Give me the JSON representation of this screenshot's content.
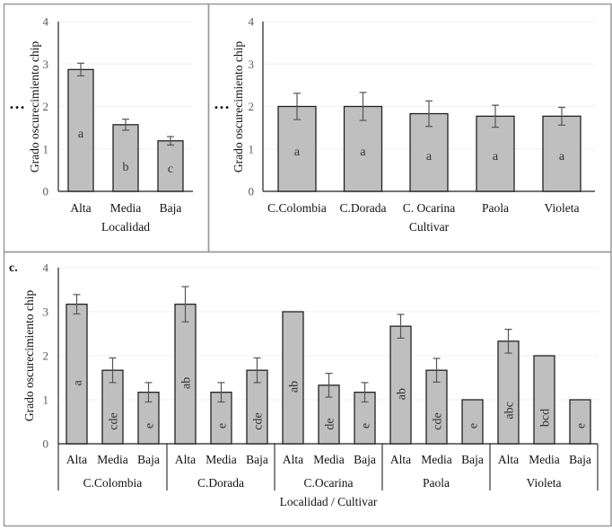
{
  "chart_data": [
    {
      "type": "bar",
      "panel": "a",
      "panel_label": "",
      "ylabel": "Grado oscurecimiento chip",
      "xlabel": "Localidad",
      "ylim": [
        0,
        4
      ],
      "yticks": [
        "0",
        "1",
        "2",
        "3",
        "4"
      ],
      "grid": true,
      "categories": [
        "Alta",
        "Media",
        "Baja"
      ],
      "values": [
        2.87,
        1.57,
        1.19
      ],
      "errors": [
        0.15,
        0.13,
        0.1
      ],
      "letters": [
        "a",
        "b",
        "c"
      ],
      "bar_color": "#bfbfbf"
    },
    {
      "type": "bar",
      "panel": "b",
      "panel_label": "",
      "ylabel": "Grado oscurecimiento chip",
      "xlabel": "Cultivar",
      "ylim": [
        0,
        4
      ],
      "yticks": [
        "0",
        "1",
        "2",
        "3",
        "4"
      ],
      "grid": true,
      "categories": [
        "C.Colombia",
        "C.Dorada",
        "C. Ocarina",
        "Paola",
        "Violeta"
      ],
      "values": [
        2.0,
        2.0,
        1.83,
        1.77,
        1.77
      ],
      "errors": [
        0.31,
        0.33,
        0.3,
        0.26,
        0.21
      ],
      "letters": [
        "a",
        "a",
        "a",
        "a",
        "a"
      ],
      "bar_color": "#bfbfbf"
    },
    {
      "type": "bar",
      "panel": "c",
      "panel_label": "c.",
      "ylabel": "Grado oscurecimiento chip",
      "xlabel": "Localidad / Cultivar",
      "ylim": [
        0,
        4
      ],
      "yticks": [
        "0",
        "1",
        "2",
        "3",
        "4"
      ],
      "grid": true,
      "groups": [
        "C.Colombia",
        "C.Dorada",
        "C.Ocarina",
        "Paola",
        "Violeta"
      ],
      "categories": [
        "Alta",
        "Media",
        "Baja"
      ],
      "series": [
        {
          "name": "C.Colombia",
          "values": [
            3.17,
            1.67,
            1.17
          ],
          "errors": [
            0.22,
            0.28,
            0.22
          ],
          "letters": [
            "a",
            "cde",
            "e"
          ]
        },
        {
          "name": "C.Dorada",
          "values": [
            3.17,
            1.17,
            1.67
          ],
          "errors": [
            0.4,
            0.22,
            0.28
          ],
          "letters": [
            "ab",
            "e",
            "cde"
          ]
        },
        {
          "name": "C.Ocarina",
          "values": [
            3.0,
            1.33,
            1.17
          ],
          "errors": [
            0,
            0.27,
            0.22
          ],
          "letters": [
            "ab",
            "de",
            "e"
          ]
        },
        {
          "name": "Paola",
          "values": [
            2.67,
            1.67,
            1.0
          ],
          "errors": [
            0.27,
            0.27,
            0
          ],
          "letters": [
            "ab",
            "cde",
            "e"
          ]
        },
        {
          "name": "Violeta",
          "values": [
            2.33,
            2.0,
            1.0
          ],
          "errors": [
            0.27,
            0,
            0
          ],
          "letters": [
            "abc",
            "bcd",
            "e"
          ]
        }
      ],
      "bar_color": "#bfbfbf"
    }
  ],
  "ellipsis_marker": "…"
}
